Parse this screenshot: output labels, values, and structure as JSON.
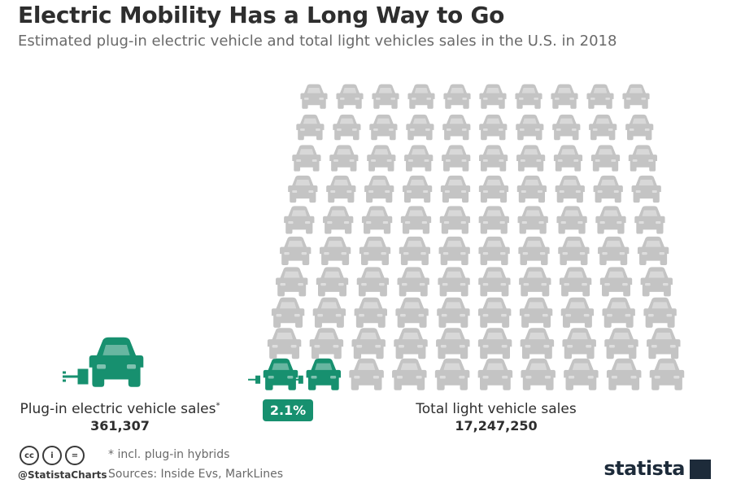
{
  "title": "Electric Mobility Has a Long Way to Go",
  "subtitle": "Estimated plug-in electric vehicle and total light vehicles sales in the U.S. in 2018",
  "ev": {
    "label": "Plug-in electric vehicle sales",
    "asterisk": "*",
    "value": "361,307"
  },
  "total": {
    "label": "Total light vehicle sales",
    "value": "17,247,250"
  },
  "share_badge": "2.1%",
  "footnote": "* incl. plug-in hybrids",
  "sources": "Sources: Inside Evs, MarkLines",
  "handle": "@StatistaCharts",
  "brand": "statista",
  "colors": {
    "ev": "#17906f",
    "car": "#c4c4c4",
    "text": "#2e2e2e"
  },
  "chart_data": {
    "type": "pictograph",
    "unit": "vehicles sold (U.S., 2018)",
    "categories": [
      "Plug-in electric vehicle sales",
      "Total light vehicle sales"
    ],
    "values": [
      361307,
      17247250
    ],
    "share_percent": 2.1,
    "grid": {
      "rows": 10,
      "columns": 10,
      "icons_total": 100,
      "icons_highlighted": 2
    }
  }
}
